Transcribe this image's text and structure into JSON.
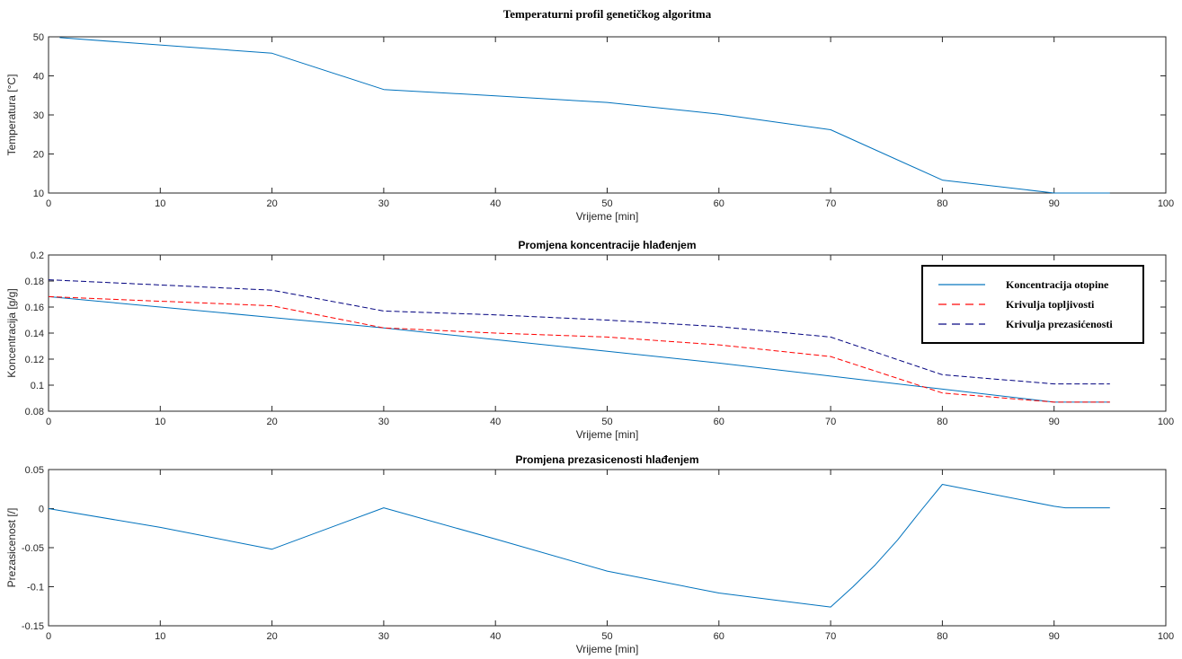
{
  "chart_data": [
    {
      "type": "line",
      "title": "Temperaturni profil genetičkog algoritma",
      "xlabel": "Vrijeme [min]",
      "ylabel": "Temperatura [°C]",
      "xlim": [
        0,
        100
      ],
      "ylim": [
        10,
        50
      ],
      "xticks": [
        "0",
        "10",
        "20",
        "30",
        "40",
        "50",
        "60",
        "70",
        "80",
        "90",
        "100"
      ],
      "yticks": [
        "10",
        "20",
        "30",
        "40",
        "50"
      ],
      "grid": false,
      "series": [
        {
          "color": "#0072BD",
          "style": "solid",
          "x": [
            1,
            20,
            30,
            40,
            50,
            60,
            70,
            80,
            90,
            95
          ],
          "y": [
            49.8,
            45.8,
            36.5,
            34.9,
            33.2,
            30.2,
            26.2,
            13.3,
            10.0,
            10.0
          ]
        }
      ]
    },
    {
      "type": "line",
      "title": "Promjena koncentracije hlađenjem",
      "xlabel": "Vrijeme [min]",
      "ylabel": "Koncentracija [g/g]",
      "xlim": [
        0,
        100
      ],
      "ylim": [
        0.08,
        0.2
      ],
      "xticks": [
        "0",
        "10",
        "20",
        "30",
        "40",
        "50",
        "60",
        "70",
        "80",
        "90",
        "100"
      ],
      "yticks": [
        "0.08",
        "0.1",
        "0.12",
        "0.14",
        "0.16",
        "0.18",
        "0.2"
      ],
      "grid": false,
      "legend": "top-right",
      "series": [
        {
          "name": "Koncentracija otopine",
          "color": "#0072BD",
          "style": "solid",
          "x": [
            0,
            10,
            20,
            30,
            40,
            50,
            60,
            70,
            80,
            90,
            95
          ],
          "y": [
            0.168,
            0.16,
            0.152,
            0.144,
            0.135,
            0.126,
            0.117,
            0.107,
            0.097,
            0.087,
            0.087
          ]
        },
        {
          "name": "Krivulja topljivosti",
          "color": "#FF0000",
          "style": "dashed",
          "x": [
            0,
            20,
            30,
            40,
            50,
            60,
            70,
            80,
            90,
            95
          ],
          "y": [
            0.168,
            0.161,
            0.144,
            0.14,
            0.137,
            0.131,
            0.122,
            0.094,
            0.087,
            0.087
          ]
        },
        {
          "name": "Krivulja prezasićenosti",
          "color": "#00007F",
          "style": "dashed",
          "x": [
            0,
            20,
            30,
            40,
            50,
            60,
            70,
            80,
            90,
            95
          ],
          "y": [
            0.181,
            0.173,
            0.157,
            0.154,
            0.15,
            0.145,
            0.137,
            0.108,
            0.101,
            0.101
          ]
        }
      ]
    },
    {
      "type": "line",
      "title": "Promjena prezasicenosti hlađenjem",
      "xlabel": "Vrijeme [min]",
      "ylabel": "Prezasicenost [/]",
      "xlim": [
        0,
        100
      ],
      "ylim": [
        -0.15,
        0.05
      ],
      "xticks": [
        "0",
        "10",
        "20",
        "30",
        "40",
        "50",
        "60",
        "70",
        "80",
        "90",
        "100"
      ],
      "yticks": [
        "-0.15",
        "-0.1",
        "-0.05",
        "0",
        "0.05"
      ],
      "grid": false,
      "series": [
        {
          "color": "#0072BD",
          "style": "solid",
          "x": [
            0,
            10,
            20,
            30,
            40,
            50,
            60,
            70,
            72,
            74,
            76,
            78,
            80,
            90,
            91,
            95
          ],
          "y": [
            0.0,
            -0.024,
            -0.052,
            0.001,
            -0.039,
            -0.08,
            -0.108,
            -0.126,
            -0.1,
            -0.072,
            -0.04,
            -0.004,
            0.031,
            0.003,
            0.001,
            0.001
          ]
        }
      ]
    }
  ]
}
